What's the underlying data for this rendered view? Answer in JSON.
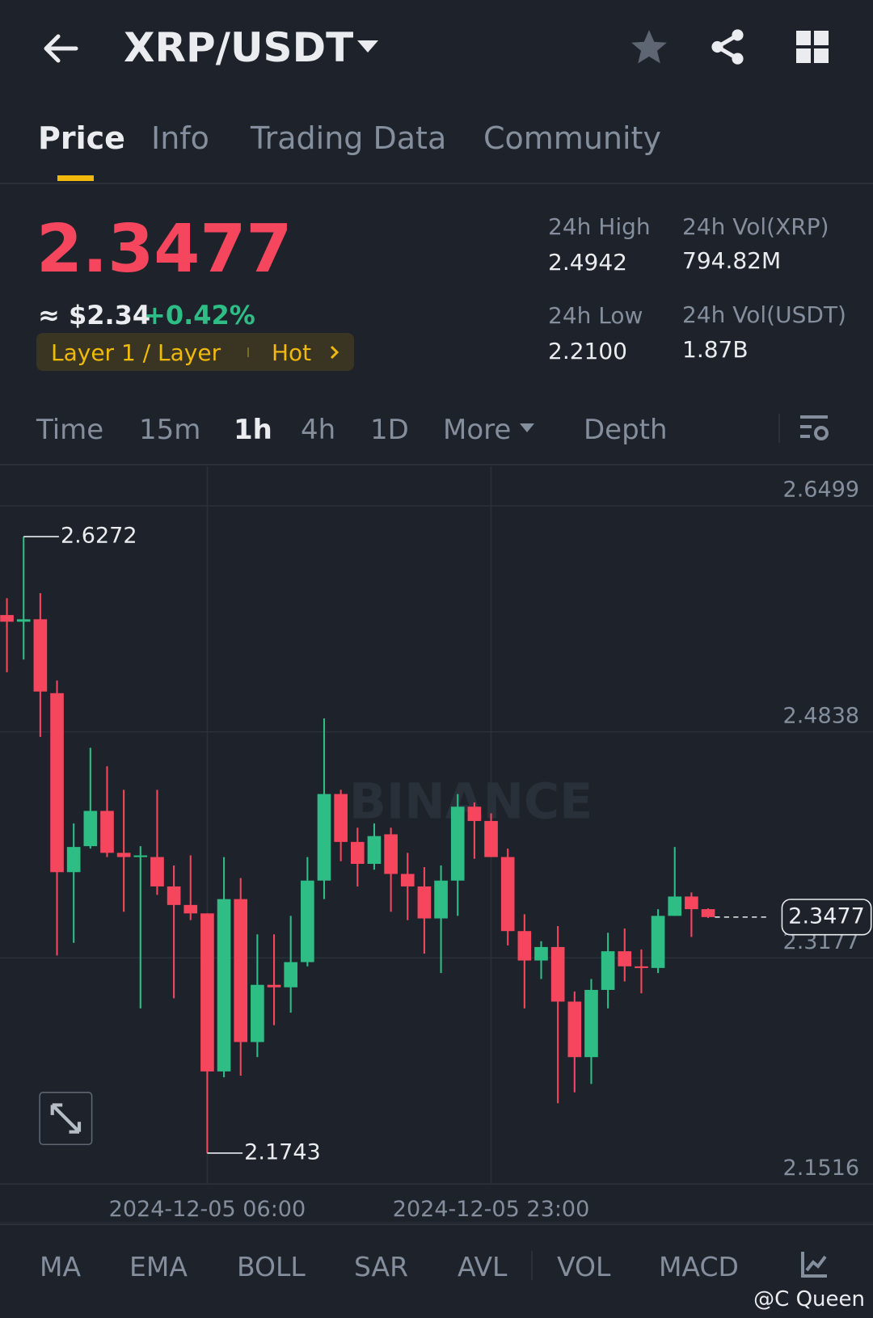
{
  "header": {
    "title": "XRP/USDT"
  },
  "tabs": [
    "Price",
    "Info",
    "Trading Data",
    "Community"
  ],
  "ticker": {
    "price": "2.3477",
    "fiat_price": "≈ $2.34",
    "change": "+0.42%",
    "tag": "Layer 1 / Layer",
    "tag_hot": "Hot",
    "stats": [
      {
        "label": "24h High",
        "value": "2.4942"
      },
      {
        "label": "24h Vol(XRP)",
        "value": "794.82M"
      },
      {
        "label": "24h Low",
        "value": "2.2100"
      },
      {
        "label": "24h Vol(USDT)",
        "value": "1.87B"
      }
    ]
  },
  "intervals": [
    "Time",
    "15m",
    "1h",
    "4h",
    "1D",
    "More",
    "Depth"
  ],
  "chart_data": {
    "type": "candlestick",
    "watermark": "BINANCE",
    "categories": [
      null,
      null,
      null,
      null,
      null,
      null,
      null,
      null,
      null,
      null,
      null,
      null,
      "2024-12-05 06:00",
      null,
      null,
      null,
      null,
      null,
      null,
      null,
      null,
      null,
      null,
      null,
      null,
      null,
      null,
      null,
      null,
      "2024-12-05 23:00",
      null,
      null,
      null,
      null,
      null,
      null,
      null,
      null,
      null,
      null,
      null,
      null,
      null
    ],
    "open": [
      2.5696,
      2.5647,
      2.5665,
      2.5122,
      2.3807,
      2.3998,
      2.4257,
      2.3949,
      2.3918,
      2.3918,
      2.3702,
      2.3566,
      2.3504,
      2.2343,
      2.3609,
      2.2559,
      2.2979,
      2.2961,
      2.3146,
      2.3745,
      2.4381,
      2.4029,
      2.3868,
      2.4085,
      2.3794,
      2.3702,
      2.3467,
      2.3745,
      2.4288,
      2.4183,
      2.3918,
      2.3374,
      2.3158,
      2.3257,
      2.2856,
      2.2448,
      2.2942,
      2.3226,
      2.3115,
      2.3103,
      2.3486,
      2.3628,
      2.3535
    ],
    "high": [
      2.582,
      2.6272,
      2.5857,
      2.5215,
      2.4165,
      2.4721,
      2.4585,
      2.4412,
      2.3998,
      2.4412,
      2.3856,
      2.393,
      2.3504,
      2.3918,
      2.3763,
      2.335,
      2.335,
      2.3486,
      2.3918,
      2.4937,
      2.4412,
      2.4134,
      2.4165,
      2.4134,
      2.3949,
      2.3844,
      2.3856,
      2.4381,
      2.4319,
      2.4239,
      2.398,
      2.3498,
      2.33,
      2.3411,
      2.293,
      2.3022,
      2.3362,
      2.3393,
      2.3239,
      2.3535,
      2.3992,
      2.3658,
      2.3541
    ],
    "low": [
      2.5276,
      2.5369,
      2.4801,
      2.3195,
      2.3288,
      2.398,
      2.3918,
      2.3516,
      2.2806,
      2.364,
      2.288,
      2.3455,
      2.1743,
      2.23,
      2.2312,
      2.2448,
      2.2683,
      2.2775,
      2.3115,
      2.3609,
      2.3887,
      2.3702,
      2.3825,
      2.3516,
      2.3455,
      2.3208,
      2.3066,
      2.3486,
      2.3905,
      2.3918,
      2.3269,
      2.2806,
      2.3022,
      2.2109,
      2.2189,
      2.2251,
      2.2806,
      2.3004,
      2.2917,
      2.3066,
      2.3486,
      2.3331,
      2.347
    ],
    "close": [
      2.5647,
      2.5665,
      2.5134,
      2.3807,
      2.3992,
      2.4257,
      2.3949,
      2.3918,
      2.393,
      2.3702,
      2.3566,
      2.3504,
      2.2343,
      2.3609,
      2.2559,
      2.2979,
      2.2961,
      2.3146,
      2.3745,
      2.4381,
      2.4029,
      2.3868,
      2.4072,
      2.3794,
      2.3702,
      2.3467,
      2.3745,
      2.4288,
      2.4183,
      2.3918,
      2.3374,
      2.3158,
      2.3257,
      2.2856,
      2.2448,
      2.2942,
      2.3226,
      2.3115,
      2.3103,
      2.3486,
      2.3628,
      2.3535,
      2.3477
    ],
    "up_color": "#2ebd85",
    "down_color": "#f6465d",
    "ylim": [
      2.1516,
      2.6789
    ],
    "yticks": [
      2.6499,
      2.4838,
      2.3177,
      2.1516
    ],
    "grid": true
  },
  "indicators": [
    "MA",
    "EMA",
    "BOLL",
    "SAR",
    "AVL",
    "VOL",
    "MACD"
  ],
  "credit": "@C Queen"
}
